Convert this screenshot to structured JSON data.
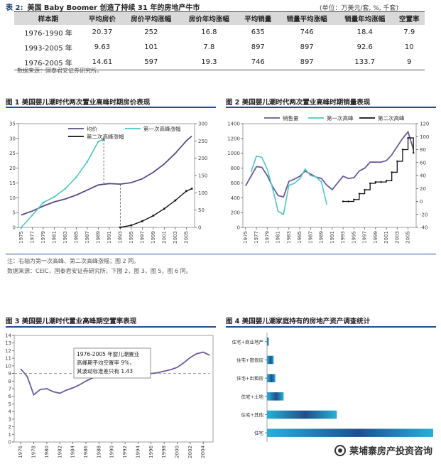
{
  "table": {
    "tag": "表 2:",
    "title": "美国 Baby Boomer 创造了持续 31 年的房地产牛市",
    "unit": "(单位：万美元/套, %, 千套)",
    "headers": [
      "样本期",
      "平均房价",
      "房价平均涨幅",
      "房价年均涨幅",
      "平均销量",
      "销量平均涨幅",
      "销量年均涨幅",
      "空置率"
    ],
    "rows": [
      [
        "1976-1990 年",
        "20.37",
        "252",
        "16.8",
        "635",
        "746",
        "18.4",
        "7.9"
      ],
      [
        "1993-2005 年",
        "9.63",
        "101",
        "7.8",
        "897",
        "897",
        "92.6",
        "10"
      ],
      [
        "1976-2005 年",
        "14.61",
        "597",
        "19.3",
        "746",
        "897",
        "133.7",
        "9"
      ]
    ],
    "source": "数据来源：国泰君安证券研究所。"
  },
  "fig1": {
    "title": "图 1  美国婴儿潮时代两次置业高峰时期房价表现",
    "legend": [
      "均价",
      "第一次高峰涨幅",
      "第二次高峰涨幅"
    ],
    "colors": {
      "price": "#5b4a8a",
      "first": "#4cc7c1",
      "second": "#111111"
    }
  },
  "fig2": {
    "title": "图 2  美国婴儿潮时代两次置业高峰时期销量表现",
    "legend": [
      "销售量",
      "第一次高峰",
      "第二次高峰"
    ],
    "colors": {
      "sales": "#6b5a9c",
      "first": "#4cc7c1",
      "second": "#111111"
    }
  },
  "notes": {
    "note1": "注：右轴为第一次高峰、第二次高峰涨幅；图 2 同。",
    "note2": "数据来源：CEIC，国泰君安证券研究所，下图 2，图 3，图 5，图 6 同。"
  },
  "fig3": {
    "title": "图 3  美国婴儿潮时代置业高峰期空置率表现",
    "annotation": [
      "1976-2005 年婴儿潮置业",
      "高峰期平均空置率 9%，",
      "其波动标准差只有 1.43"
    ],
    "colors": {
      "line": "#6b5a9c",
      "mean": "#999999"
    }
  },
  "fig4": {
    "title": "图 4  美国婴儿潮家庭持有的房地产资产调查统计",
    "colors": {
      "dark": "#1f4f8a",
      "light": "#27b0d8"
    }
  },
  "watermark": "莱埔寨房产投资咨询",
  "chart_data": [
    {
      "type": "line",
      "title": "图 1  美国婴儿潮时代两次置业高峰时期房价表现",
      "x_ticks": [
        "1975",
        "1977",
        "1979",
        "1981",
        "1983",
        "1985",
        "1987",
        "1989",
        "1991",
        "1993",
        "1995",
        "1997",
        "1999",
        "2001",
        "2003",
        "2005"
      ],
      "ylim": [
        0,
        35
      ],
      "y2lim": [
        0,
        300
      ],
      "series": [
        {
          "name": "均价",
          "axis": "left",
          "x": [
            1975,
            1977,
            1979,
            1981,
            1983,
            1985,
            1987,
            1989,
            1991,
            1993,
            1995,
            1997,
            1999,
            2001,
            2003,
            2005,
            2006
          ],
          "values": [
            4.2,
            5.5,
            7.2,
            8.6,
            9.6,
            10.9,
            12.6,
            14.3,
            14.8,
            14.6,
            15.1,
            16.4,
            18.6,
            21.4,
            25.0,
            29.2,
            30.8
          ]
        },
        {
          "name": "第一次高峰涨幅",
          "axis": "right",
          "x": [
            1975,
            1977,
            1979,
            1981,
            1983,
            1985,
            1987,
            1989,
            1990
          ],
          "values": [
            0,
            35,
            72,
            88,
            112,
            145,
            190,
            248,
            255
          ]
        },
        {
          "name": "第二次高峰涨幅",
          "axis": "right",
          "x": [
            1993,
            1995,
            1997,
            1999,
            2001,
            2003,
            2005,
            2006
          ],
          "values": [
            0,
            6,
            18,
            34,
            54,
            78,
            105,
            112
          ]
        }
      ]
    },
    {
      "type": "line",
      "title": "图 2  美国婴儿潮时代两次置业高峰时期销量表现",
      "x_ticks": [
        "1975",
        "1977",
        "1979",
        "1981",
        "1983",
        "1985",
        "1987",
        "1989",
        "1991",
        "1993",
        "1995",
        "1997",
        "1999",
        "2001",
        "2003",
        "2005"
      ],
      "ylim": [
        0,
        1400
      ],
      "y2lim": [
        -40,
        120
      ],
      "series": [
        {
          "name": "销售量",
          "axis": "left",
          "x": [
            1975,
            1976,
            1977,
            1978,
            1979,
            1980,
            1981,
            1982,
            1983,
            1984,
            1985,
            1986,
            1987,
            1988,
            1989,
            1990,
            1991,
            1992,
            1993,
            1994,
            1995,
            1996,
            1997,
            1998,
            1999,
            2000,
            2001,
            2002,
            2003,
            2004,
            2005,
            2006
          ],
          "values": [
            560,
            690,
            820,
            810,
            700,
            550,
            430,
            410,
            620,
            650,
            690,
            760,
            720,
            680,
            660,
            570,
            510,
            600,
            690,
            660,
            670,
            760,
            800,
            880,
            880,
            880,
            900,
            980,
            1090,
            1200,
            1290,
            1050
          ]
        },
        {
          "name": "第一次高峰",
          "axis": "right",
          "x": [
            1976,
            1977,
            1978,
            1979,
            1980,
            1981,
            1982,
            1983,
            1984,
            1985,
            1986,
            1987,
            1988,
            1989,
            1990
          ],
          "values": [
            45,
            70,
            68,
            50,
            20,
            -15,
            -20,
            25,
            28,
            35,
            50,
            40,
            38,
            30,
            -5
          ]
        },
        {
          "name": "第二次高峰",
          "axis": "right",
          "x": [
            1993,
            1994,
            1995,
            1996,
            1997,
            1998,
            1999,
            2000,
            2001,
            2002,
            2003,
            2004,
            2005,
            2006
          ],
          "values": [
            0,
            0,
            3,
            12,
            18,
            28,
            30,
            30,
            32,
            45,
            62,
            80,
            98,
            75
          ]
        }
      ]
    },
    {
      "type": "line",
      "title": "图 3  美国婴儿潮时代置业高峰期空置率表现",
      "x_ticks": [
        "1976",
        "1978",
        "1980",
        "1982",
        "1984",
        "1986",
        "1988",
        "1990",
        "1992",
        "1994",
        "1996",
        "1998",
        "2000",
        "2002",
        "2004"
      ],
      "ylim": [
        0,
        14
      ],
      "series": [
        {
          "x": [
            1976,
            1977,
            1978,
            1979,
            1980,
            1981,
            1982,
            1983,
            1984,
            1985,
            1986,
            1987,
            1988,
            1989,
            1990,
            1991,
            1992,
            1993,
            1994,
            1995,
            1996,
            1997,
            1998,
            1999,
            2000,
            2001,
            2002,
            2003,
            2004,
            2005
          ],
          "values": [
            9.6,
            8.6,
            6.2,
            6.9,
            7.0,
            6.6,
            6.4,
            6.8,
            7.1,
            7.5,
            8.0,
            8.4,
            9.0,
            8.7,
            9.1,
            9.2,
            8.8,
            8.6,
            8.9,
            9.2,
            9.0,
            9.1,
            9.3,
            9.5,
            9.8,
            10.4,
            11.1,
            11.6,
            11.8,
            11.4
          ]
        },
        {
          "x": [
            1975,
            2005
          ],
          "values": [
            9.0,
            9.0
          ]
        }
      ]
    },
    {
      "type": "bar",
      "title": "图 4  美国婴儿潮家庭持有的房地产资产调查统计",
      "categories": [
        "住宅+商业地产",
        "住宅+度假房",
        "住宅+出租房",
        "住宅+土地",
        "住宅+其他",
        "住宅"
      ],
      "values": [
        1,
        4,
        5,
        10,
        42,
        100
      ]
    }
  ]
}
